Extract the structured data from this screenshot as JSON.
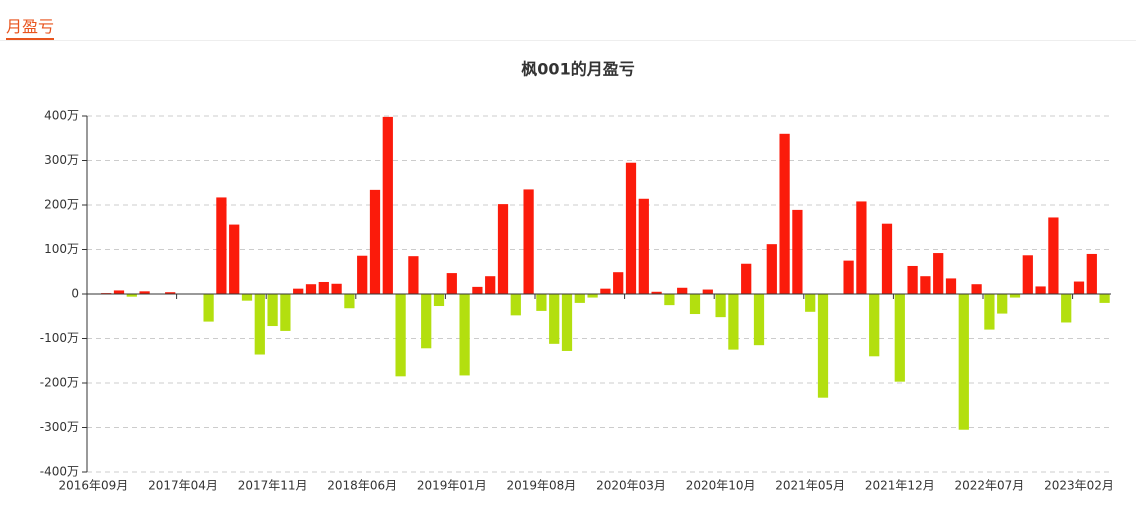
{
  "tab": "月盈亏",
  "chart_data": {
    "type": "bar",
    "title": "枫001的月盈亏",
    "categories": [
      "2016年09月",
      null,
      null,
      null,
      null,
      null,
      null,
      "2017年04月",
      null,
      null,
      null,
      null,
      null,
      null,
      "2017年11月",
      null,
      null,
      null,
      null,
      null,
      null,
      "2018年06月",
      null,
      null,
      null,
      null,
      null,
      null,
      "2019年01月",
      null,
      null,
      null,
      null,
      null,
      null,
      "2019年08月",
      null,
      null,
      null,
      null,
      null,
      null,
      "2020年03月",
      null,
      null,
      null,
      null,
      null,
      null,
      "2020年10月",
      null,
      null,
      null,
      null,
      null,
      null,
      "2021年05月",
      null,
      null,
      null,
      null,
      null,
      null,
      "2021年12月",
      null,
      null,
      null,
      null,
      null,
      null,
      "2022年07月",
      null,
      null,
      null,
      null,
      null,
      null,
      "2023年02月",
      null,
      null
    ],
    "values": [
      0,
      2,
      8,
      -6,
      6,
      0,
      4,
      -1,
      0,
      -62,
      217,
      156,
      -15,
      -136,
      -72,
      -83,
      12,
      22,
      27,
      23,
      -32,
      86,
      234,
      398,
      -185,
      85,
      -122,
      -27,
      47,
      -183,
      16,
      40,
      202,
      -48,
      235,
      -38,
      -112,
      -128,
      -20,
      -8,
      12,
      49,
      295,
      214,
      5,
      -25,
      14,
      -45,
      10,
      -52,
      -125,
      68,
      -115,
      112,
      360,
      189,
      -40,
      -233,
      0,
      75,
      208,
      -140,
      158,
      -197,
      63,
      40,
      92,
      35,
      -305,
      22,
      -80,
      -44,
      -8,
      87,
      17,
      172,
      -64,
      28,
      90,
      -20
    ],
    "positive_color": "#fb1b0b",
    "negative_color": "#b3df0f",
    "ylim": [
      -400,
      400
    ],
    "yticks": [
      {
        "value": -400,
        "label": "-400万"
      },
      {
        "value": -300,
        "label": "-300万"
      },
      {
        "value": -200,
        "label": "-200万"
      },
      {
        "value": -100,
        "label": "-100万"
      },
      0,
      {
        "value": 100,
        "label": "100万"
      },
      {
        "value": 200,
        "label": "200万"
      },
      {
        "value": 300,
        "label": "300万"
      },
      {
        "value": 400,
        "label": "400万"
      }
    ],
    "grid": true
  }
}
